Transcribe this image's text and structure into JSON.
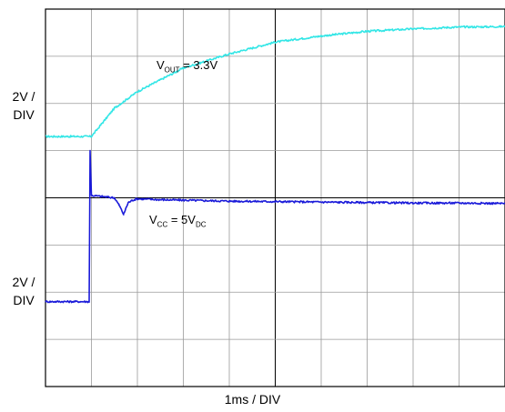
{
  "chart_data": {
    "type": "line",
    "title": "",
    "grid": true,
    "xlabel": "1ms / DIV",
    "x_divisions": 10,
    "y_divisions": 8,
    "channels": [
      {
        "name": "VOUT",
        "scale_label": [
          "2V /",
          "DIV"
        ],
        "color": "#33e6e6",
        "annotation": {
          "main": "V",
          "sub": "OUT",
          "rest": " = 3.3V"
        },
        "steady_value": "3.3V",
        "t_div": [
          0,
          0.5,
          1.0,
          1.25,
          1.5,
          2,
          3,
          4,
          5,
          6,
          7,
          8,
          9,
          10
        ],
        "y_div": [
          5.3,
          5.3,
          5.3,
          5.6,
          5.9,
          6.25,
          6.75,
          7.05,
          7.3,
          7.43,
          7.53,
          7.58,
          7.62,
          7.63
        ]
      },
      {
        "name": "VCC",
        "scale_label": [
          "2V /",
          "DIV"
        ],
        "color": "#1a1ad9",
        "annotation": {
          "main": "V",
          "sub": "CC",
          "rest": " = 5V",
          "sub2": "DC"
        },
        "steady_value": "5V",
        "t_div": [
          0,
          0.95,
          0.97,
          1.0,
          1.5,
          1.6,
          1.7,
          1.8,
          1.9,
          2.0,
          2.5,
          3,
          4,
          5,
          6,
          7,
          8,
          9,
          10
        ],
        "y_div": [
          1.8,
          1.8,
          5.0,
          4.05,
          4.0,
          3.85,
          3.65,
          3.9,
          3.95,
          3.98,
          3.96,
          3.95,
          3.93,
          3.92,
          3.91,
          3.9,
          3.89,
          3.89,
          3.88
        ]
      }
    ]
  }
}
